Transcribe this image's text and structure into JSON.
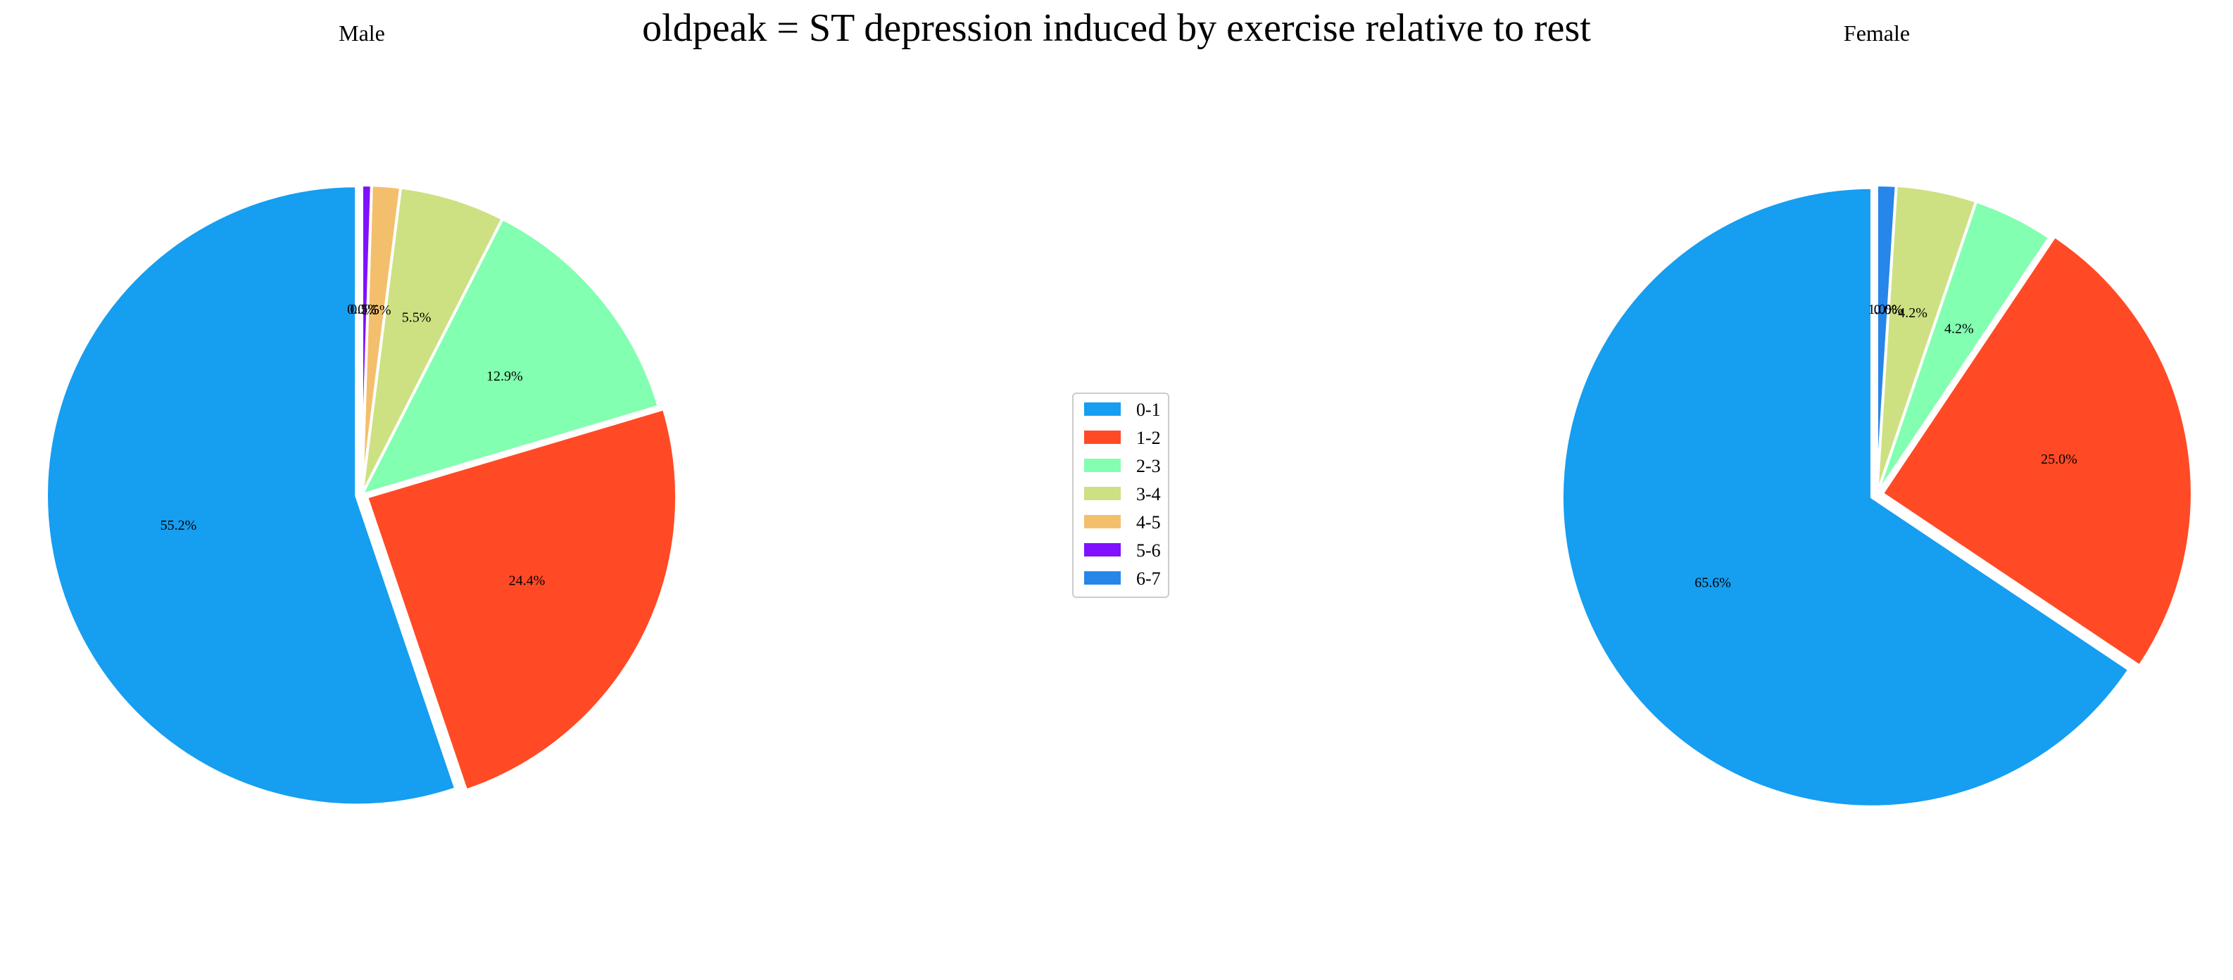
{
  "figure": {
    "title": "oldpeak = ST depression induced by exercise relative to rest"
  },
  "colors": {
    "0-1": "#169ef0",
    "1-2": "#ff4a25",
    "2-3": "#82ffb0",
    "3-4": "#cde182",
    "4-5": "#f4bf6c",
    "5-6": "#8010ff",
    "6-7": "#2686ea"
  },
  "chart_data": [
    {
      "type": "pie",
      "title": "Male",
      "categories": [
        "0-1",
        "1-2",
        "2-3",
        "3-4",
        "4-5",
        "5-6",
        "6-7"
      ],
      "values": [
        55.2,
        24.4,
        12.9,
        5.5,
        1.5,
        0.5,
        0.0
      ],
      "labels": [
        "55.2%",
        "24.4%",
        "12.9%",
        "5.5%",
        "1.5%",
        "0.5%",
        "0.0%"
      ],
      "start_angle_deg": 90,
      "direction": "counterclockwise"
    },
    {
      "type": "pie",
      "title": "Female",
      "categories": [
        "0-1",
        "1-2",
        "2-3",
        "3-4",
        "4-5",
        "5-6",
        "6-7"
      ],
      "values": [
        65.6,
        25.0,
        4.2,
        4.2,
        0.0,
        0.0,
        1.0
      ],
      "labels": [
        "65.6%",
        "25.0%",
        "4.2%",
        "4.2%",
        "0.0%",
        "0.0%",
        "1.0%"
      ],
      "start_angle_deg": 90,
      "direction": "counterclockwise"
    }
  ],
  "legend": {
    "placement": "center",
    "entries": [
      "0-1",
      "1-2",
      "2-3",
      "3-4",
      "4-5",
      "5-6",
      "6-7"
    ]
  }
}
